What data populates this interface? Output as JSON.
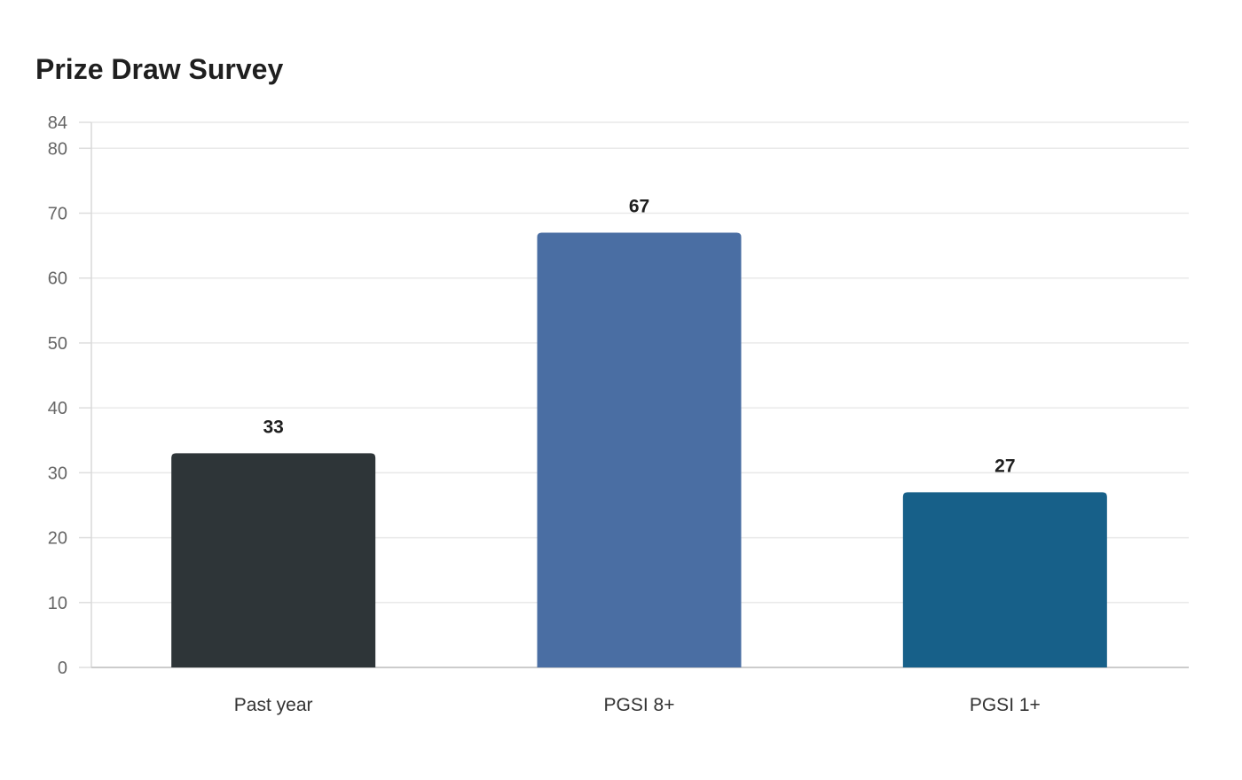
{
  "chart_data": {
    "type": "bar",
    "title": "Prize Draw Survey",
    "xlabel": "",
    "ylabel": "",
    "categories": [
      "Past year",
      "PGSI 8+",
      "PGSI 1+"
    ],
    "values": [
      33,
      67,
      27
    ],
    "colors": [
      "#2e3538",
      "#4a6ea3",
      "#176089"
    ],
    "ylim": [
      0,
      84
    ],
    "yticks": [
      0,
      10,
      20,
      30,
      40,
      50,
      60,
      70,
      80,
      84
    ],
    "data_labels": true,
    "grid": true,
    "legend": "none"
  }
}
